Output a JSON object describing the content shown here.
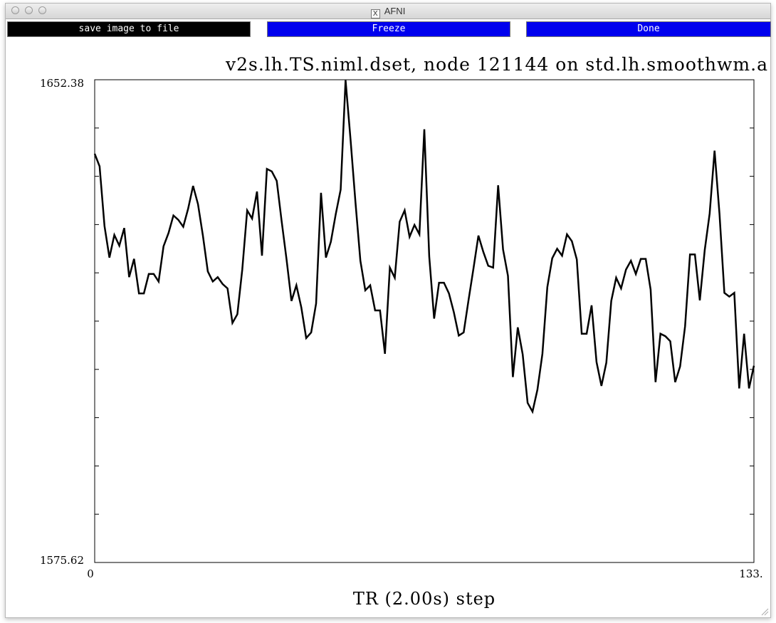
{
  "window": {
    "title": "AFNI",
    "title_icon": "x11-icon",
    "traffic_lights": [
      "close",
      "minimize",
      "zoom"
    ]
  },
  "toolbar": {
    "save_label": "save image to file",
    "freeze_label": "Freeze",
    "done_label": "Done",
    "colors": {
      "save_bg": "#000000",
      "freeze_bg": "#0000ee",
      "done_bg": "#0000ee",
      "text": "#ffffff"
    }
  },
  "chart_data": {
    "type": "line",
    "title": "v2s.lh.TS.niml.dset, node 121144 on std.lh.smoothwm.a",
    "xlabel": "TR (2.00s) step",
    "ylabel": "",
    "x_tick_labels": [
      "0",
      "133."
    ],
    "y_tick_labels": [
      "1652.38",
      "1575.62"
    ],
    "xlim": [
      0,
      133
    ],
    "ylim": [
      1575.62,
      1652.38
    ],
    "grid": false,
    "line_color": "#000000",
    "series": [
      {
        "values": [
          1640.6,
          1638.6,
          1629.1,
          1624.1,
          1627.7,
          1626.0,
          1628.8,
          1621.0,
          1623.9,
          1618.4,
          1618.4,
          1621.5,
          1621.5,
          1620.3,
          1625.9,
          1628.0,
          1630.8,
          1630.1,
          1629.0,
          1631.9,
          1635.5,
          1632.6,
          1627.6,
          1621.9,
          1620.3,
          1621.0,
          1619.9,
          1619.2,
          1613.7,
          1615.1,
          1622.2,
          1631.6,
          1630.3,
          1634.6,
          1624.4,
          1638.2,
          1637.8,
          1636.3,
          1629.9,
          1623.8,
          1617.2,
          1619.7,
          1616.2,
          1611.3,
          1612.2,
          1616.8,
          1634.4,
          1624.1,
          1626.6,
          1631.0,
          1634.9,
          1652.3,
          1643.0,
          1632.9,
          1623.6,
          1618.9,
          1619.7,
          1615.7,
          1615.7,
          1608.8,
          1622.5,
          1620.9,
          1629.8,
          1631.6,
          1627.4,
          1629.3,
          1627.8,
          1644.5,
          1624.3,
          1614.4,
          1620.1,
          1620.1,
          1618.4,
          1615.4,
          1611.7,
          1612.2,
          1617.4,
          1622.4,
          1627.6,
          1625.0,
          1622.8,
          1622.5,
          1635.6,
          1625.4,
          1621.2,
          1605.1,
          1613.0,
          1608.7,
          1601.0,
          1599.6,
          1603.1,
          1608.8,
          1619.4,
          1624.0,
          1625.5,
          1624.4,
          1627.8,
          1626.7,
          1623.8,
          1612.0,
          1612.0,
          1616.5,
          1607.5,
          1603.7,
          1607.4,
          1617.2,
          1620.9,
          1619.2,
          1622.2,
          1623.6,
          1621.5,
          1623.9,
          1623.9,
          1619.0,
          1604.3,
          1612.0,
          1611.6,
          1610.8,
          1604.3,
          1606.8,
          1613.2,
          1624.6,
          1624.6,
          1617.3,
          1625.3,
          1631.1,
          1641.1,
          1631.1,
          1618.5,
          1617.9,
          1618.5,
          1603.3,
          1612.0,
          1603.3,
          1606.9
        ]
      }
    ]
  }
}
